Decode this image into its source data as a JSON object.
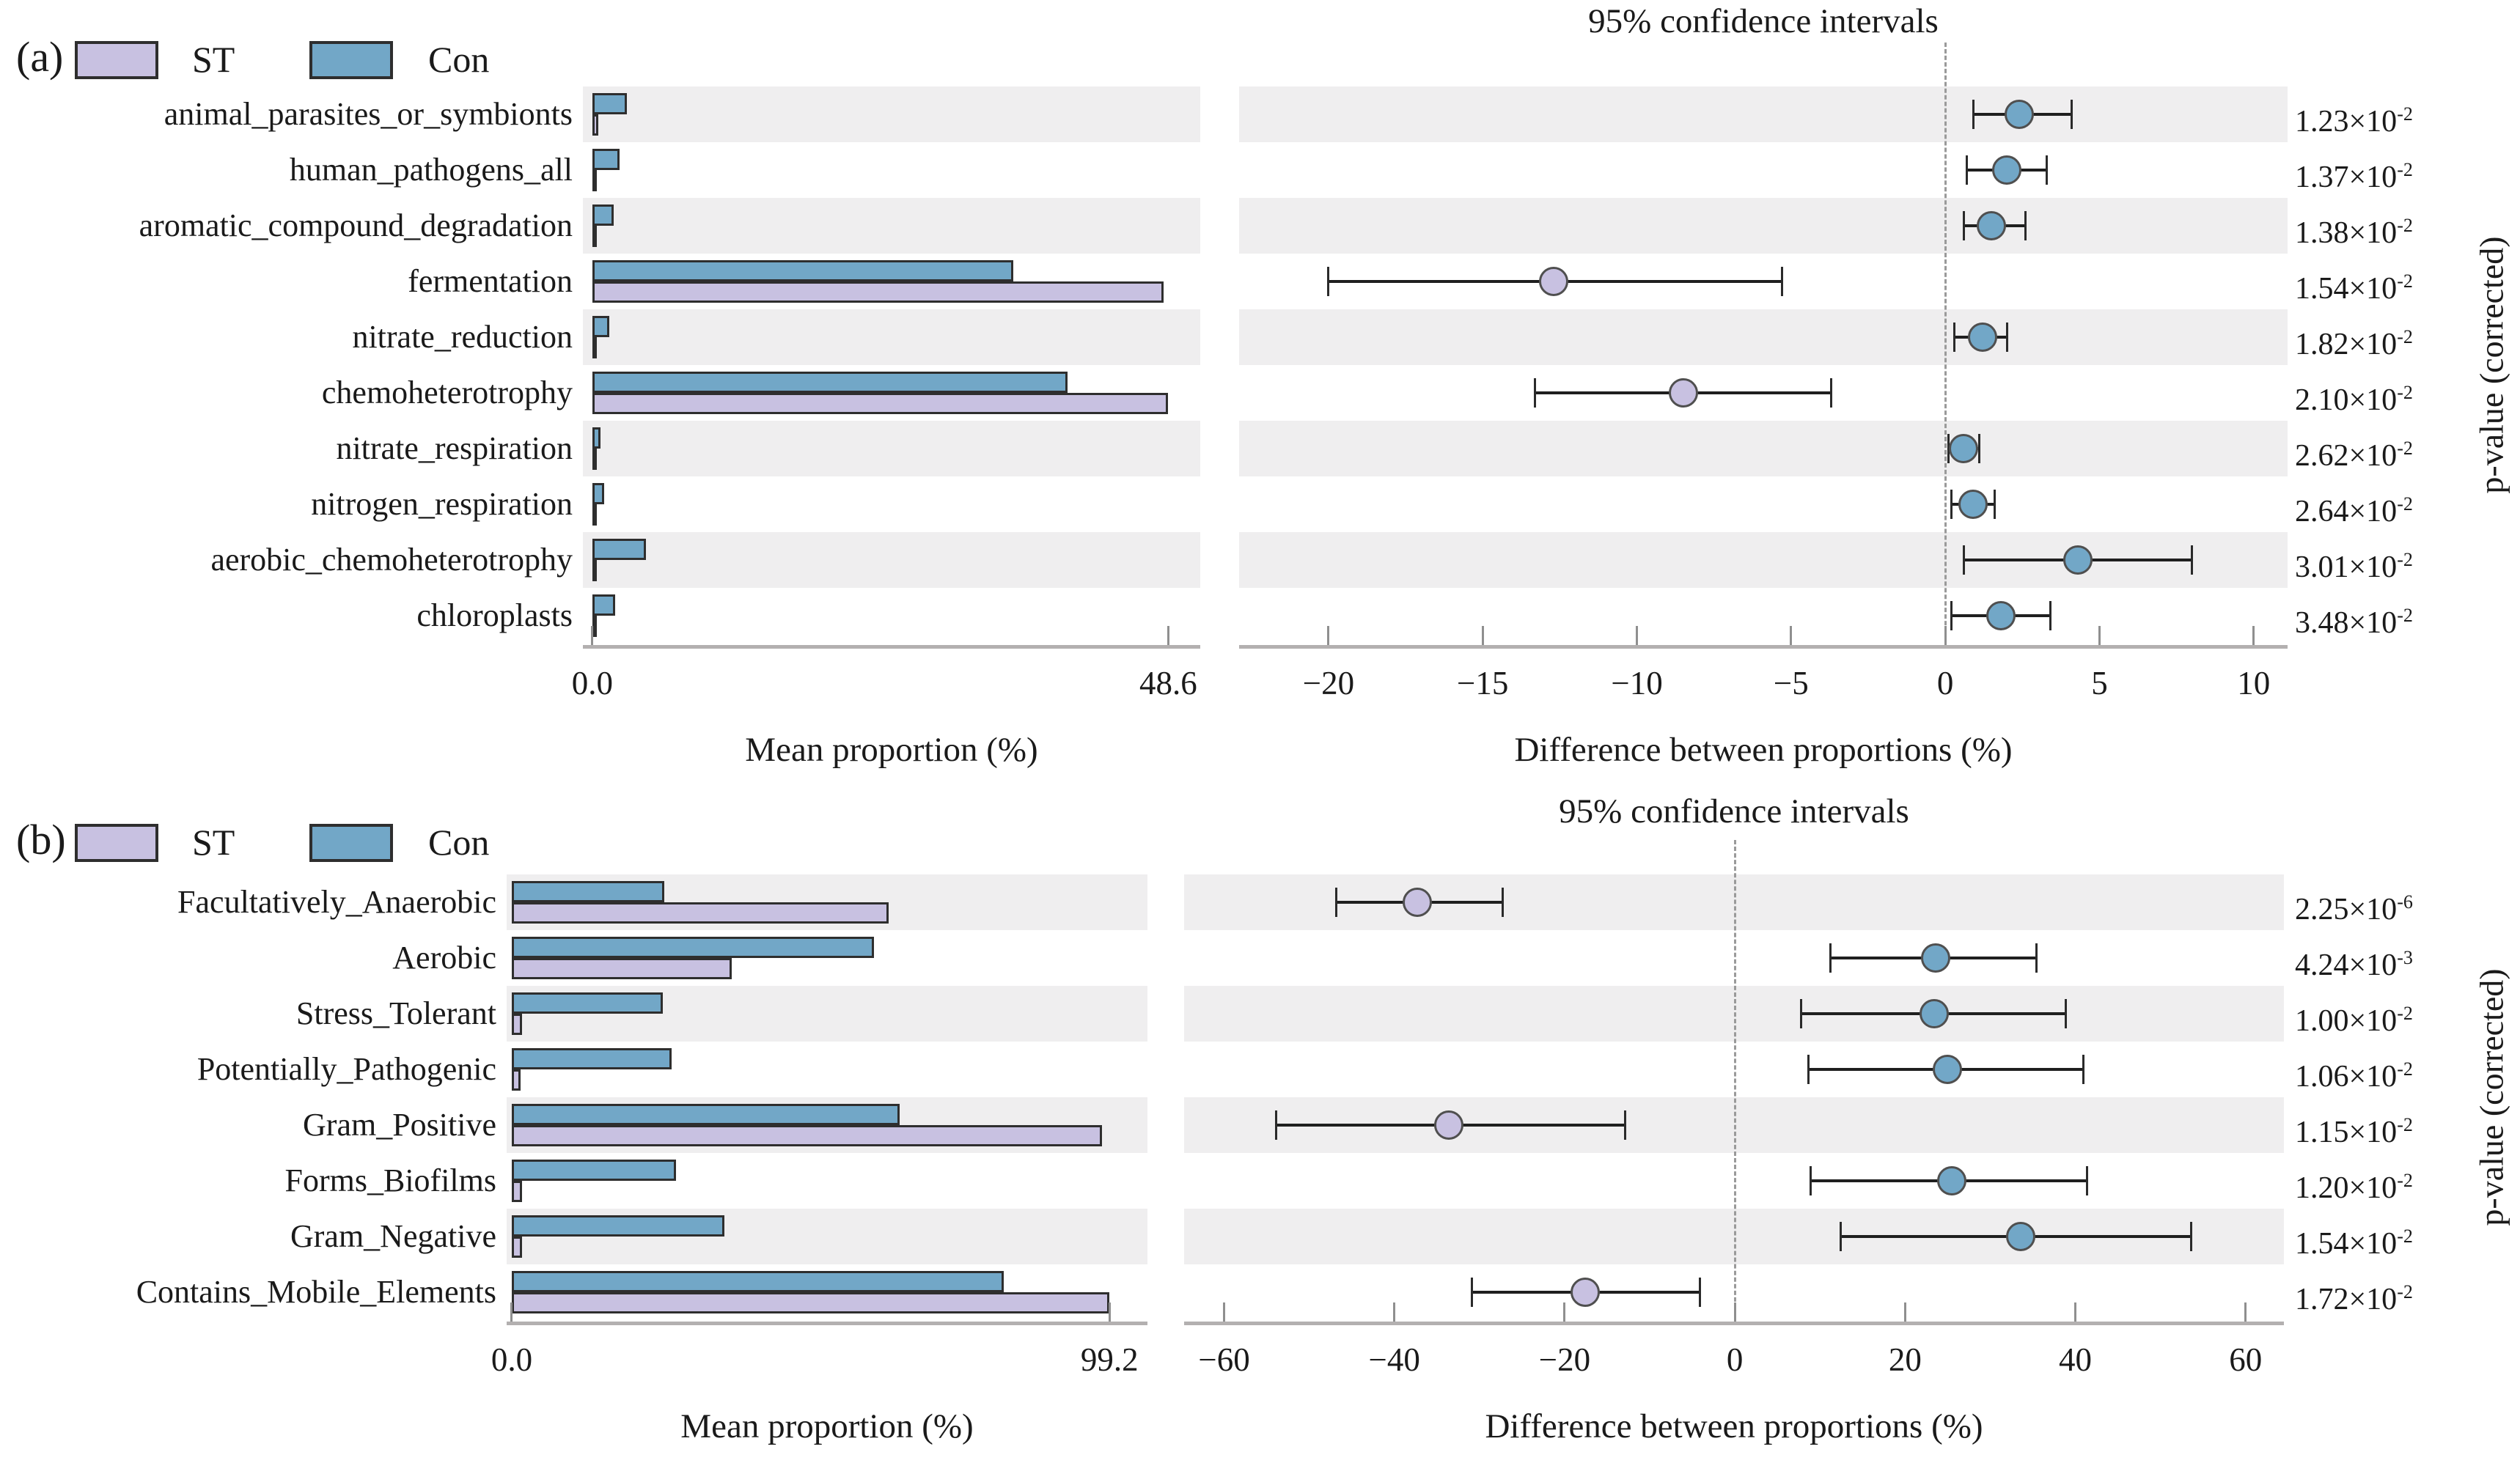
{
  "figure": {
    "background": "#ffffff",
    "band_color": "#efeeef",
    "bar_border_color": "#2e2e2e",
    "axis_color": "#b3b0b0",
    "tick_color": "#8f8f8f",
    "zero_line_color": "#9a9a9a",
    "ci_color": "#1f1f1f",
    "text_color": "#1a1a1a"
  },
  "legend": {
    "st_label": "ST",
    "con_label": "Con",
    "st_color": "#c8c1e1",
    "con_color": "#72a7c7"
  },
  "chart_data": [
    {
      "type": "extended-error-bar",
      "panel_label": "(a)",
      "ci_title": "95% confidence intervals",
      "mean_xlabel": "Mean proportion (%)",
      "diff_xlabel": "Difference between proportions (%)",
      "right_ylabel": "p-value (corrected)",
      "legend": [
        "ST",
        "Con"
      ],
      "mean_axis": {
        "range": [
          -0.8,
          51.3
        ],
        "ticks": [
          {
            "v": 0,
            "label": "0.0"
          },
          {
            "v": 48.6,
            "label": "48.6"
          }
        ]
      },
      "diff_axis": {
        "range": [
          -22.9,
          11.1
        ],
        "zero_line": true,
        "ticks": [
          {
            "v": -20,
            "label": "−20"
          },
          {
            "v": -15,
            "label": "−15"
          },
          {
            "v": -10,
            "label": "−10"
          },
          {
            "v": -5,
            "label": "−5"
          },
          {
            "v": 0,
            "label": "0"
          },
          {
            "v": 5,
            "label": "5"
          },
          {
            "v": 10,
            "label": "10"
          }
        ]
      },
      "rows": [
        {
          "label": "animal_parasites_or_symbionts",
          "mean_pct": {
            "ST": 0.5,
            "Con": 2.9
          },
          "diff": 2.4,
          "ci95": [
            0.9,
            4.1
          ],
          "enriched": "Con",
          "p_base": "1.23×10",
          "p_exp": "-2"
        },
        {
          "label": "human_pathogens_all",
          "mean_pct": {
            "ST": 0.3,
            "Con": 2.3
          },
          "diff": 2.0,
          "ci95": [
            0.7,
            3.3
          ],
          "enriched": "Con",
          "p_base": "1.37×10",
          "p_exp": "-2"
        },
        {
          "label": "aromatic_compound_degradation",
          "mean_pct": {
            "ST": 0.3,
            "Con": 1.8
          },
          "diff": 1.5,
          "ci95": [
            0.6,
            2.6
          ],
          "enriched": "Con",
          "p_base": "1.38×10",
          "p_exp": "-2"
        },
        {
          "label": "fermentation",
          "mean_pct": {
            "ST": 48.2,
            "Con": 35.5
          },
          "diff": -12.7,
          "ci95": [
            -20.0,
            -5.3
          ],
          "enriched": "ST",
          "p_base": "1.54×10",
          "p_exp": "-2"
        },
        {
          "label": "nitrate_reduction",
          "mean_pct": {
            "ST": 0.2,
            "Con": 1.4
          },
          "diff": 1.2,
          "ci95": [
            0.3,
            2.0
          ],
          "enriched": "Con",
          "p_base": "1.82×10",
          "p_exp": "-2"
        },
        {
          "label": "chemoheterotrophy",
          "mean_pct": {
            "ST": 48.6,
            "Con": 40.1
          },
          "diff": -8.5,
          "ci95": [
            -13.3,
            -3.7
          ],
          "enriched": "ST",
          "p_base": "2.10×10",
          "p_exp": "-2"
        },
        {
          "label": "nitrate_respiration",
          "mean_pct": {
            "ST": 0.1,
            "Con": 0.7
          },
          "diff": 0.6,
          "ci95": [
            0.1,
            1.1
          ],
          "enriched": "Con",
          "p_base": "2.62×10",
          "p_exp": "-2"
        },
        {
          "label": "nitrogen_respiration",
          "mean_pct": {
            "ST": 0.1,
            "Con": 1.0
          },
          "diff": 0.9,
          "ci95": [
            0.2,
            1.6
          ],
          "enriched": "Con",
          "p_base": "2.64×10",
          "p_exp": "-2"
        },
        {
          "label": "aerobic_chemoheterotrophy",
          "mean_pct": {
            "ST": 0.2,
            "Con": 4.5
          },
          "diff": 4.3,
          "ci95": [
            0.6,
            8.0
          ],
          "enriched": "Con",
          "p_base": "3.01×10",
          "p_exp": "-2"
        },
        {
          "label": "chloroplasts",
          "mean_pct": {
            "ST": 0.1,
            "Con": 1.9
          },
          "diff": 1.8,
          "ci95": [
            0.2,
            3.4
          ],
          "enriched": "Con",
          "p_base": "3.48×10",
          "p_exp": "-2"
        }
      ]
    },
    {
      "type": "extended-error-bar",
      "panel_label": "(b)",
      "ci_title": "95% confidence intervals",
      "mean_xlabel": "Mean proportion (%)",
      "diff_xlabel": "Difference between proportions (%)",
      "right_ylabel": "p-value (corrected)",
      "legend": [
        "ST",
        "Con"
      ],
      "mean_axis": {
        "range": [
          -0.85,
          105.5
        ],
        "ticks": [
          {
            "v": 0,
            "label": "0.0"
          },
          {
            "v": 99.2,
            "label": "99.2"
          }
        ]
      },
      "diff_axis": {
        "range": [
          -64.7,
          64.5
        ],
        "zero_line": true,
        "ticks": [
          {
            "v": -60,
            "label": "−60"
          },
          {
            "v": -40,
            "label": "−40"
          },
          {
            "v": -20,
            "label": "−20"
          },
          {
            "v": 0,
            "label": "0"
          },
          {
            "v": 20,
            "label": "20"
          },
          {
            "v": 40,
            "label": "40"
          },
          {
            "v": 60,
            "label": "60"
          }
        ]
      },
      "rows": [
        {
          "label": "Facultatively_Anaerobic",
          "mean_pct": {
            "ST": 62.6,
            "Con": 25.3
          },
          "diff": -37.3,
          "ci95": [
            -46.8,
            -27.3
          ],
          "enriched": "ST",
          "p_base": "2.25×10",
          "p_exp": "-6"
        },
        {
          "label": "Aerobic",
          "mean_pct": {
            "ST": 36.5,
            "Con": 60.1
          },
          "diff": 23.6,
          "ci95": [
            11.2,
            35.4
          ],
          "enriched": "Con",
          "p_base": "4.24×10",
          "p_exp": "-3"
        },
        {
          "label": "Stress_Tolerant",
          "mean_pct": {
            "ST": 1.7,
            "Con": 25.1
          },
          "diff": 23.4,
          "ci95": [
            7.8,
            38.9
          ],
          "enriched": "Con",
          "p_base": "1.00×10",
          "p_exp": "-2"
        },
        {
          "label": "Potentially_Pathogenic",
          "mean_pct": {
            "ST": 1.5,
            "Con": 26.5
          },
          "diff": 25.0,
          "ci95": [
            8.6,
            40.9
          ],
          "enriched": "Con",
          "p_base": "1.06×10",
          "p_exp": "-2"
        },
        {
          "label": "Gram_Positive",
          "mean_pct": {
            "ST": 98.0,
            "Con": 64.4
          },
          "diff": -33.6,
          "ci95": [
            -53.9,
            -12.9
          ],
          "enriched": "ST",
          "p_base": "1.15×10",
          "p_exp": "-2"
        },
        {
          "label": "Forms_Biofilms",
          "mean_pct": {
            "ST": 1.7,
            "Con": 27.2
          },
          "diff": 25.5,
          "ci95": [
            8.9,
            41.4
          ],
          "enriched": "Con",
          "p_base": "1.20×10",
          "p_exp": "-2"
        },
        {
          "label": "Gram_Negative",
          "mean_pct": {
            "ST": 1.7,
            "Con": 35.3
          },
          "diff": 33.6,
          "ci95": [
            12.4,
            53.6
          ],
          "enriched": "Con",
          "p_base": "1.54×10",
          "p_exp": "-2"
        },
        {
          "label": "Contains_Mobile_Elements",
          "mean_pct": {
            "ST": 99.2,
            "Con": 81.6
          },
          "diff": -17.6,
          "ci95": [
            -30.9,
            -4.1
          ],
          "enriched": "ST",
          "p_base": "1.72×10",
          "p_exp": "-2"
        }
      ]
    }
  ]
}
